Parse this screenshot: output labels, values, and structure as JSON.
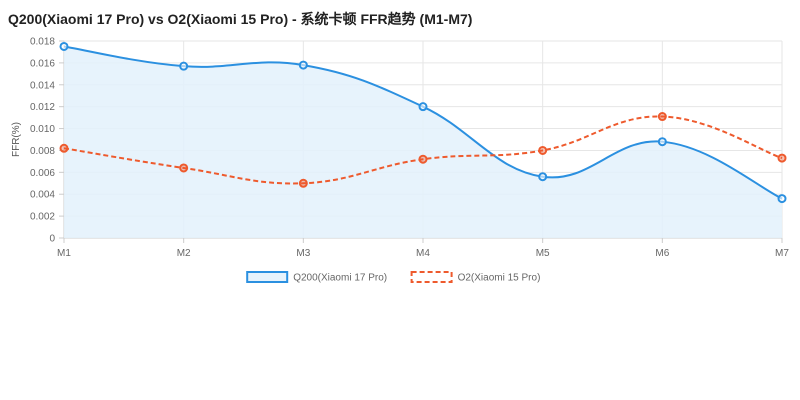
{
  "chart_data": {
    "type": "line",
    "title": "Q200(Xiaomi 17 Pro) vs O2(Xiaomi 15 Pro) - 系统卡顿 FFR趋势 (M1-M7)",
    "xlabel": "",
    "ylabel": "FFR(%)",
    "categories": [
      "M1",
      "M2",
      "M3",
      "M4",
      "M5",
      "M6",
      "M7"
    ],
    "ylim": [
      0,
      0.018
    ],
    "yticks": [
      "0",
      "0.002",
      "0.004",
      "0.006",
      "0.008",
      "0.010",
      "0.012",
      "0.014",
      "0.016",
      "0.018"
    ],
    "grid": true,
    "legend": "bottom",
    "series": [
      {
        "name": "Q200(Xiaomi 17 Pro)",
        "values": [
          0.0175,
          0.0157,
          0.0158,
          0.012,
          0.0056,
          0.0088,
          0.0036
        ],
        "color": "#2b90e0",
        "fill": "#e3f1fb",
        "dash": false
      },
      {
        "name": "O2(Xiaomi 15 Pro)",
        "values": [
          0.0082,
          0.0064,
          0.005,
          0.0072,
          0.008,
          0.0111,
          0.0073
        ],
        "color": "#ee5a2d",
        "dash": true
      }
    ]
  }
}
